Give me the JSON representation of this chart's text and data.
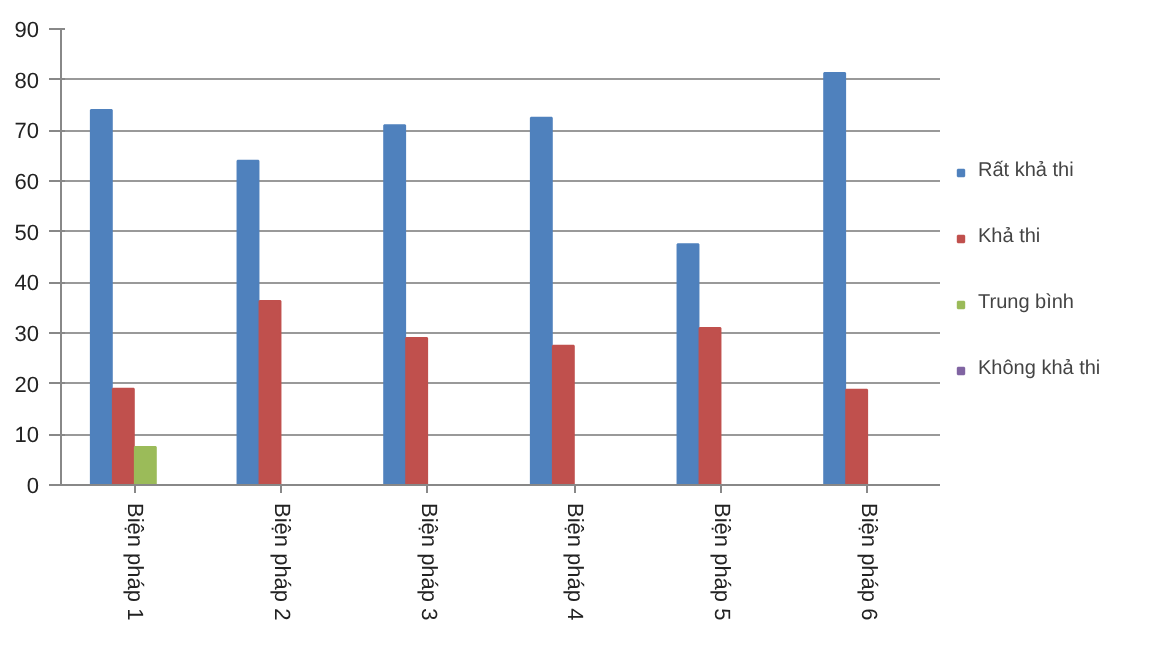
{
  "chart_data": {
    "type": "bar",
    "categories": [
      "Biện pháp 1",
      "Biện pháp 2",
      "Biện pháp 3",
      "Biện pháp 4",
      "Biện pháp 5",
      "Biện pháp 6"
    ],
    "series": [
      {
        "name": "Rất khả thi",
        "color": "#4f81bd",
        "values": [
          74,
          64,
          71,
          72.5,
          47.5,
          81.3
        ]
      },
      {
        "name": "Khả thi",
        "color": "#c0504d",
        "values": [
          19,
          36.3,
          29,
          27.5,
          31,
          18.8
        ]
      },
      {
        "name": "Trung bình",
        "color": "#9bbb59",
        "values": [
          7.5,
          0,
          0,
          0,
          0,
          0
        ]
      },
      {
        "name": "Không khả thi",
        "color": "#8064a2",
        "values": [
          0,
          0,
          0,
          0,
          0,
          0
        ]
      }
    ],
    "ylim": [
      0,
      90
    ],
    "yticks": [
      0,
      10,
      20,
      30,
      40,
      50,
      60,
      70,
      80,
      90
    ],
    "grid": "y",
    "legend": "right"
  }
}
